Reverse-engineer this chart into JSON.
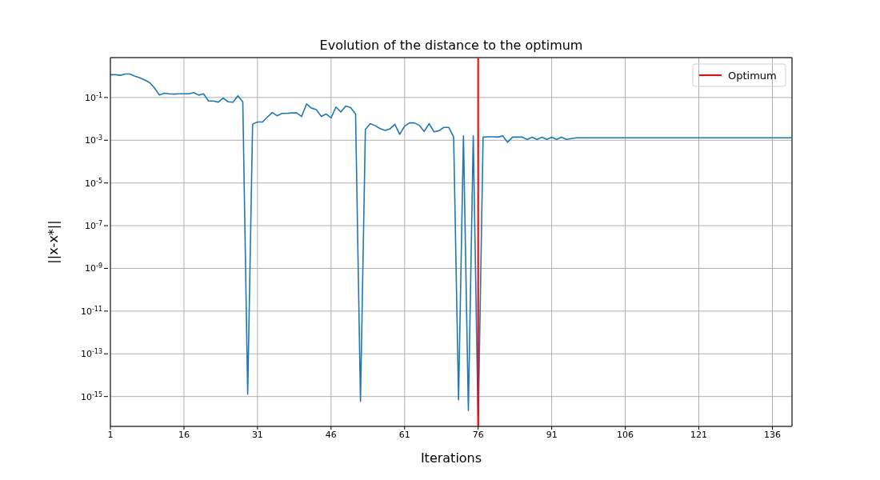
{
  "chart_data": {
    "type": "line",
    "title": "Evolution of the distance to the optimum",
    "xlabel": "Iterations",
    "ylabel": "||x-x*||",
    "x": [
      1,
      2,
      3,
      4,
      5,
      6,
      7,
      8,
      9,
      10,
      11,
      12,
      13,
      14,
      15,
      16,
      17,
      18,
      19,
      20,
      21,
      22,
      23,
      24,
      25,
      26,
      27,
      28,
      29,
      30,
      31,
      32,
      33,
      34,
      35,
      36,
      37,
      38,
      39,
      40,
      41,
      42,
      43,
      44,
      45,
      46,
      47,
      48,
      49,
      50,
      51,
      52,
      53,
      54,
      55,
      56,
      57,
      58,
      59,
      60,
      61,
      62,
      63,
      64,
      65,
      66,
      67,
      68,
      69,
      70,
      71,
      72,
      73,
      74,
      75,
      76,
      77,
      78,
      79,
      80,
      81,
      82,
      83,
      84,
      85,
      86,
      87,
      88,
      89,
      90,
      91,
      92,
      93,
      94,
      95,
      96,
      97,
      98,
      99,
      100,
      101,
      102,
      103,
      104,
      105,
      106,
      107,
      108,
      109,
      110,
      111,
      112,
      113,
      114,
      115,
      116,
      117,
      118,
      119,
      120,
      121,
      122,
      123,
      124,
      125,
      126,
      127,
      128,
      129,
      130,
      131,
      132,
      133,
      134,
      135,
      136,
      137,
      138,
      139,
      140
    ],
    "series": [
      {
        "color": "#1f77b4",
        "values": [
          1.17,
          1.17,
          1.1,
          1.26,
          1.26,
          1.0,
          0.84,
          0.66,
          0.5,
          0.28,
          0.13,
          0.16,
          0.15,
          0.145,
          0.15,
          0.15,
          0.15,
          0.17,
          0.13,
          0.15,
          0.069,
          0.069,
          0.061,
          0.094,
          0.063,
          0.06,
          0.12,
          0.063,
          1.3e-15,
          0.0057,
          0.0071,
          0.0071,
          0.012,
          0.02,
          0.014,
          0.018,
          0.018,
          0.019,
          0.019,
          0.013,
          0.05,
          0.032,
          0.027,
          0.013,
          0.017,
          0.011,
          0.036,
          0.021,
          0.04,
          0.034,
          0.017,
          6e-16,
          0.0032,
          0.006,
          0.0048,
          0.0035,
          0.0029,
          0.0034,
          0.0056,
          0.0019,
          0.0046,
          0.0065,
          0.0065,
          0.005,
          0.0026,
          0.006,
          0.0025,
          0.0028,
          0.004,
          0.004,
          0.0014,
          7e-16,
          0.0016,
          2.2e-16,
          0.0016,
          4e-17,
          0.0014,
          0.00145,
          0.00145,
          0.0014,
          0.0016,
          0.0008,
          0.0014,
          0.0014,
          0.0014,
          0.0011,
          0.0014,
          0.0011,
          0.0014,
          0.0011,
          0.0014,
          0.0011,
          0.0014,
          0.0011,
          0.0012,
          0.0013,
          0.0013,
          0.0013,
          0.0013,
          0.0013,
          0.0013,
          0.0013,
          0.0013,
          0.0013,
          0.0013,
          0.0013,
          0.0013,
          0.0013,
          0.0013,
          0.0013,
          0.0013,
          0.0013,
          0.0013,
          0.0013,
          0.0013,
          0.0013,
          0.0013,
          0.0013,
          0.0013,
          0.0013,
          0.0013,
          0.0013,
          0.0013,
          0.0013,
          0.0013,
          0.0013,
          0.0013,
          0.0013,
          0.0013,
          0.0013,
          0.0013,
          0.0013,
          0.0013,
          0.0013,
          0.0013,
          0.0013,
          0.0013,
          0.0013,
          0.0013,
          0.0013
        ]
      },
      {
        "name": "Optimum",
        "type": "line",
        "color": "#ff0000",
        "x": [
          76,
          76
        ],
        "values": [
          4e-17,
          7.4
        ]
      }
    ],
    "xlim": [
      1,
      140
    ],
    "xticks": [
      1,
      16,
      31,
      46,
      61,
      76,
      91,
      106,
      121,
      136
    ],
    "ylim": [
      4e-17,
      7.4
    ],
    "yticks": [
      {
        "value": 1e-15,
        "label": "10$^{-15}$"
      },
      {
        "value": 1e-13,
        "label": "10$^{-13}$"
      },
      {
        "value": 1e-11,
        "label": "10$^{-11}$"
      },
      {
        "value": 1e-09,
        "label": "10$^{-9}$"
      },
      {
        "value": 1e-07,
        "label": "10$^{-7}$"
      },
      {
        "value": 1e-05,
        "label": "10$^{-5}$"
      },
      {
        "value": 0.001,
        "label": "10$^{-3}$"
      },
      {
        "value": 0.1,
        "label": "10$^{-1}$"
      }
    ],
    "log": "y",
    "grid": true,
    "legend": "top right",
    "line_style": "solid",
    "marker": "none"
  }
}
